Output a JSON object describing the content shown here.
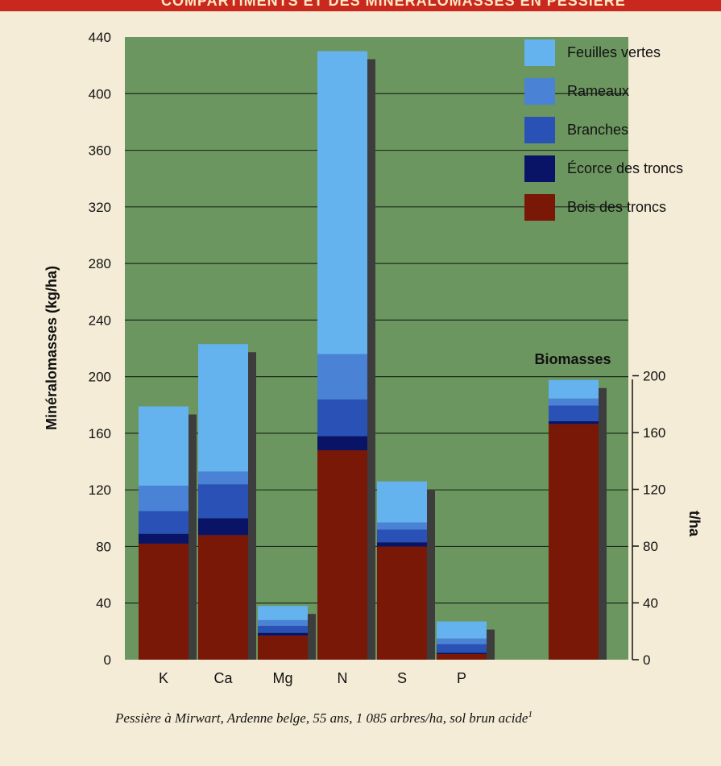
{
  "header": {
    "title": "COMPARTIMENTS ET DES MINÉRALOMASSES EN PESSIÈRE"
  },
  "colors": {
    "plot_bg": "#6c9660",
    "gridline": "#1e2a1e",
    "shadow": "#3d3d3d",
    "feuilles_vertes": "#64b2ee",
    "rameaux": "#4a82d6",
    "branches": "#2a52b6",
    "ecorce": "#0a1466",
    "bois": "#7a1808"
  },
  "chart_data": [
    {
      "type": "bar",
      "stacked": true,
      "ylabel": "Minéralomasses (kg/ha)",
      "ylim": [
        0,
        440
      ],
      "yticks": [
        "0",
        "40",
        "80",
        "120",
        "160",
        "200",
        "240",
        "280",
        "320",
        "360",
        "400",
        "440"
      ],
      "grid": true,
      "legend_position": "top-right",
      "categories": [
        "K",
        "Ca",
        "Mg",
        "N",
        "S",
        "P"
      ],
      "series": [
        {
          "name": "Bois des troncs",
          "color_key": "bois",
          "values": [
            82,
            88,
            17,
            148,
            80,
            4
          ]
        },
        {
          "name": "Écorce des troncs",
          "color_key": "ecorce",
          "values": [
            7,
            12,
            2,
            10,
            3,
            1
          ]
        },
        {
          "name": "Branches",
          "color_key": "branches",
          "values": [
            16,
            24,
            5,
            26,
            9,
            6
          ]
        },
        {
          "name": "Rameaux",
          "color_key": "rameaux",
          "values": [
            18,
            9,
            4,
            32,
            5,
            4
          ]
        },
        {
          "name": "Feuilles vertes",
          "color_key": "feuilles_vertes",
          "values": [
            56,
            90,
            10,
            214,
            29,
            12
          ]
        }
      ],
      "legend_order": [
        "Feuilles vertes",
        "Rameaux",
        "Branches",
        "Écorce des troncs",
        "Bois des troncs"
      ]
    },
    {
      "type": "bar",
      "stacked": true,
      "title": "Biomasses",
      "ylabel": "t/ha",
      "ylim": [
        0,
        220
      ],
      "yticks": [
        "0",
        "40",
        "80",
        "120",
        "160",
        "200"
      ],
      "categories": [
        ""
      ],
      "series": [
        {
          "name": "Bois des troncs",
          "color_key": "bois",
          "values": [
            166
          ]
        },
        {
          "name": "Écorce des troncs",
          "color_key": "ecorce",
          "values": [
            2
          ]
        },
        {
          "name": "Branches",
          "color_key": "branches",
          "values": [
            11
          ]
        },
        {
          "name": "Rameaux",
          "color_key": "rameaux",
          "values": [
            5
          ]
        },
        {
          "name": "Feuilles vertes",
          "color_key": "feuilles_vertes",
          "values": [
            13
          ]
        }
      ]
    }
  ],
  "caption": {
    "text": "Pessière à Mirwart, Ardenne belge, 55 ans, 1 085 arbres/ha, sol brun acide",
    "superscript": "1"
  }
}
